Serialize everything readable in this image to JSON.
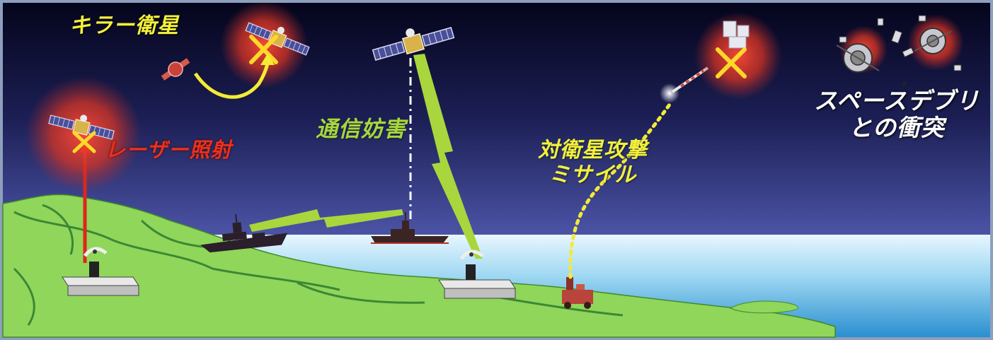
{
  "labels": {
    "killer_satellite": "キラー衛星",
    "laser_irradiation": "レーザー照射",
    "communication_jamming": "通信妨害",
    "asat_missile_line1": "対衛星攻撃",
    "asat_missile_line2": "ミサイル",
    "space_debris_line1": "スペースデブリ",
    "space_debris_line2": "との衝突"
  },
  "colors": {
    "sky_top": "#05051a",
    "sky_mid": "#3a3f8c",
    "sky_horizon": "#8f9fd8",
    "sea": "#8fd2f0",
    "land": "#8fd65a",
    "laser_beam": "#e0261b",
    "jamming_bolt": "#a9d63c",
    "missile_trail": "#f2ea3a",
    "threat_x": "#ffd82a",
    "threat_glow": "#e23b2b",
    "label_yellow": "#f4f03a",
    "label_red": "#e8321e",
    "label_green": "#a9d63c",
    "label_white": "#ffffff"
  },
  "icons": [
    "satellite-icon",
    "killer-satellite-icon",
    "ground-station-icon",
    "warship-icon",
    "missile-launcher-icon",
    "x-mark-icon",
    "lightning-bolt-icon",
    "space-debris-icon"
  ]
}
